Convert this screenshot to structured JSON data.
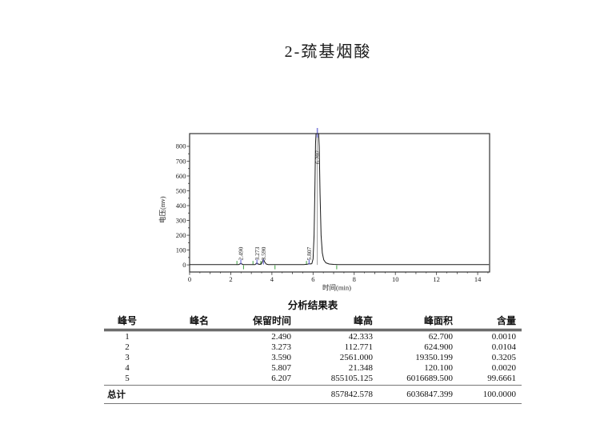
{
  "page_title": "2-巯基烟酸",
  "chart_data": {
    "type": "line",
    "title": "",
    "xlabel": "时间(min)",
    "ylabel": "电压(mv)",
    "xlim": [
      0,
      14.58
    ],
    "ylim": [
      -48,
      886
    ],
    "xticks_major": [
      0,
      2,
      4,
      6,
      8,
      10,
      12,
      14
    ],
    "yticks_major": [
      0,
      100,
      200,
      300,
      400,
      500,
      600,
      700,
      800
    ],
    "grid": false,
    "axis_color": "#333333",
    "trace_color": "#1a1a1a",
    "peak_label_color": "#2a2a2a",
    "rt_marker_color": "#7070d8",
    "integration_mark_color": "#3fa03f",
    "clipped_marker_line_color": "#909090",
    "clipped_marker_tip_color": "#8080dd",
    "peaks": [
      {
        "rt": 2.49,
        "label": "2.490",
        "clipped": false
      },
      {
        "rt": 3.273,
        "label": "3.273",
        "clipped": false
      },
      {
        "rt": 3.59,
        "label": "3.590",
        "clipped": false
      },
      {
        "rt": 5.807,
        "label": "5.807",
        "clipped": false
      },
      {
        "rt": 6.207,
        "label": "6.207",
        "clipped": true
      }
    ],
    "integration_marks_above": [
      2.3,
      3.08,
      3.46,
      5.68
    ],
    "integration_marks_below": [
      2.62,
      4.15,
      7.15
    ],
    "trace": [
      [
        0,
        2
      ],
      [
        2.38,
        2
      ],
      [
        2.44,
        6
      ],
      [
        2.49,
        12
      ],
      [
        2.54,
        6
      ],
      [
        2.6,
        2
      ],
      [
        3.18,
        2
      ],
      [
        3.24,
        9
      ],
      [
        3.273,
        15
      ],
      [
        3.31,
        8
      ],
      [
        3.38,
        3
      ],
      [
        3.48,
        6
      ],
      [
        3.55,
        26
      ],
      [
        3.59,
        40
      ],
      [
        3.64,
        22
      ],
      [
        3.72,
        6
      ],
      [
        3.82,
        2
      ],
      [
        5.55,
        2
      ],
      [
        5.76,
        5
      ],
      [
        5.81,
        11
      ],
      [
        5.86,
        6
      ],
      [
        5.94,
        8
      ],
      [
        6.0,
        40
      ],
      [
        6.05,
        200
      ],
      [
        6.09,
        520
      ],
      [
        6.12,
        820
      ],
      [
        6.145,
        950
      ],
      [
        6.27,
        950
      ],
      [
        6.3,
        800
      ],
      [
        6.34,
        480
      ],
      [
        6.39,
        200
      ],
      [
        6.45,
        80
      ],
      [
        6.52,
        34
      ],
      [
        6.62,
        14
      ],
      [
        6.78,
        6
      ],
      [
        7.0,
        3
      ],
      [
        7.2,
        2
      ],
      [
        14.55,
        2
      ]
    ]
  },
  "table": {
    "title": "分析结果表",
    "headers": [
      "峰号",
      "峰名",
      "保留时间",
      "峰高",
      "峰面积",
      "含量"
    ],
    "rows": [
      [
        "1",
        "",
        "2.490",
        "42.333",
        "62.700",
        "0.0010"
      ],
      [
        "2",
        "",
        "3.273",
        "112.771",
        "624.900",
        "0.0104"
      ],
      [
        "3",
        "",
        "3.590",
        "2561.000",
        "19350.199",
        "0.3205"
      ],
      [
        "4",
        "",
        "5.807",
        "21.348",
        "120.100",
        "0.0020"
      ],
      [
        "5",
        "",
        "6.207",
        "855105.125",
        "6016689.500",
        "99.6661"
      ]
    ],
    "total_row": {
      "label": "总计",
      "retention_time": "",
      "height": "857842.578",
      "area": "6036847.399",
      "content": "100.0000"
    }
  }
}
